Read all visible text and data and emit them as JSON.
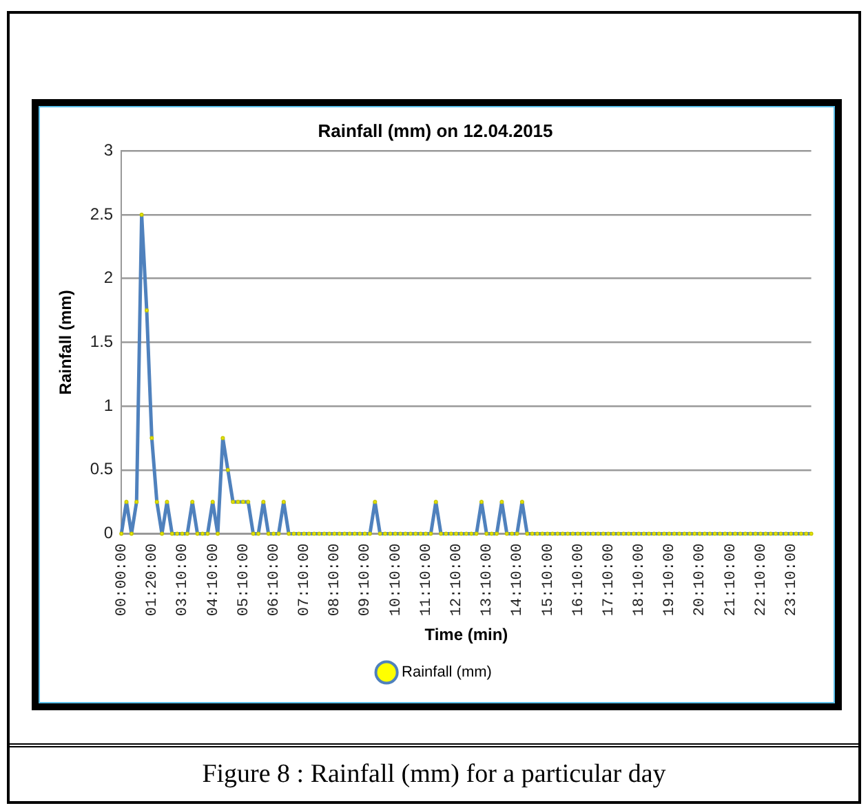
{
  "chart_data": {
    "type": "line",
    "title": "Rainfall (mm) on 12.04.2015",
    "xlabel": "Time (min)",
    "ylabel": "Rainfall (mm)",
    "annotations": [
      "Figure 8 : Rainfall (mm) for a particular day"
    ],
    "categories": [
      "00:00:00",
      null,
      null,
      null,
      null,
      null,
      "01:20:00",
      null,
      null,
      null,
      null,
      null,
      "03:10:00",
      null,
      null,
      null,
      null,
      null,
      "04:10:00",
      null,
      null,
      null,
      null,
      null,
      "05:10:00",
      null,
      null,
      null,
      null,
      null,
      "06:10:00",
      null,
      null,
      null,
      null,
      null,
      "07:10:00",
      null,
      null,
      null,
      null,
      null,
      "08:10:00",
      null,
      null,
      null,
      null,
      null,
      "09:10:00",
      null,
      null,
      null,
      null,
      null,
      "10:10:00",
      null,
      null,
      null,
      null,
      null,
      "11:10:00",
      null,
      null,
      null,
      null,
      null,
      "12:10:00",
      null,
      null,
      null,
      null,
      null,
      "13:10:00",
      null,
      null,
      null,
      null,
      null,
      "14:10:00",
      null,
      null,
      null,
      null,
      null,
      "15:10:00",
      null,
      null,
      null,
      null,
      null,
      "16:10:00",
      null,
      null,
      null,
      null,
      null,
      "17:10:00",
      null,
      null,
      null,
      null,
      null,
      "18:10:00",
      null,
      null,
      null,
      null,
      null,
      "19:10:00",
      null,
      null,
      null,
      null,
      null,
      "20:10:00",
      null,
      null,
      null,
      null,
      null,
      "21:10:00",
      null,
      null,
      null,
      null,
      null,
      "22:10:00",
      null,
      null,
      null,
      null,
      null,
      "23:10:00",
      null,
      null,
      null,
      null
    ],
    "series": [
      {
        "name": "Rainfall (mm)",
        "color": "#4f81bd",
        "values": [
          0,
          0.25,
          0,
          0.25,
          2.5,
          1.75,
          0.75,
          0.25,
          0,
          0.25,
          0,
          0,
          0,
          0,
          0.25,
          0,
          0,
          0,
          0.25,
          0,
          0.75,
          0.5,
          0.25,
          0.25,
          0.25,
          0.25,
          0,
          0,
          0.25,
          0,
          0,
          0,
          0.25,
          0,
          0,
          0,
          0,
          0,
          0,
          0,
          0,
          0,
          0,
          0,
          0,
          0,
          0,
          0,
          0,
          0,
          0.25,
          0,
          0,
          0,
          0,
          0,
          0,
          0,
          0,
          0,
          0,
          0,
          0.25,
          0,
          0,
          0,
          0,
          0,
          0,
          0,
          0,
          0.25,
          0,
          0,
          0,
          0.25,
          0,
          0,
          0,
          0.25,
          0,
          0,
          0,
          0,
          0,
          0,
          0,
          0,
          0,
          0,
          0,
          0,
          0,
          0,
          0,
          0,
          0,
          0,
          0,
          0,
          0,
          0,
          0,
          0,
          0,
          0,
          0,
          0,
          0,
          0,
          0,
          0,
          0,
          0,
          0,
          0,
          0,
          0,
          0,
          0,
          0,
          0,
          0,
          0,
          0,
          0,
          0,
          0,
          0,
          0,
          0,
          0,
          0,
          0,
          0,
          0,
          0
        ]
      }
    ],
    "ylim": [
      0,
      3
    ],
    "yticks": [
      0,
      0.5,
      1,
      1.5,
      2,
      2.5,
      3
    ],
    "grid": "y",
    "legend": "bottom",
    "marker": "circle",
    "line_style": "solid"
  }
}
